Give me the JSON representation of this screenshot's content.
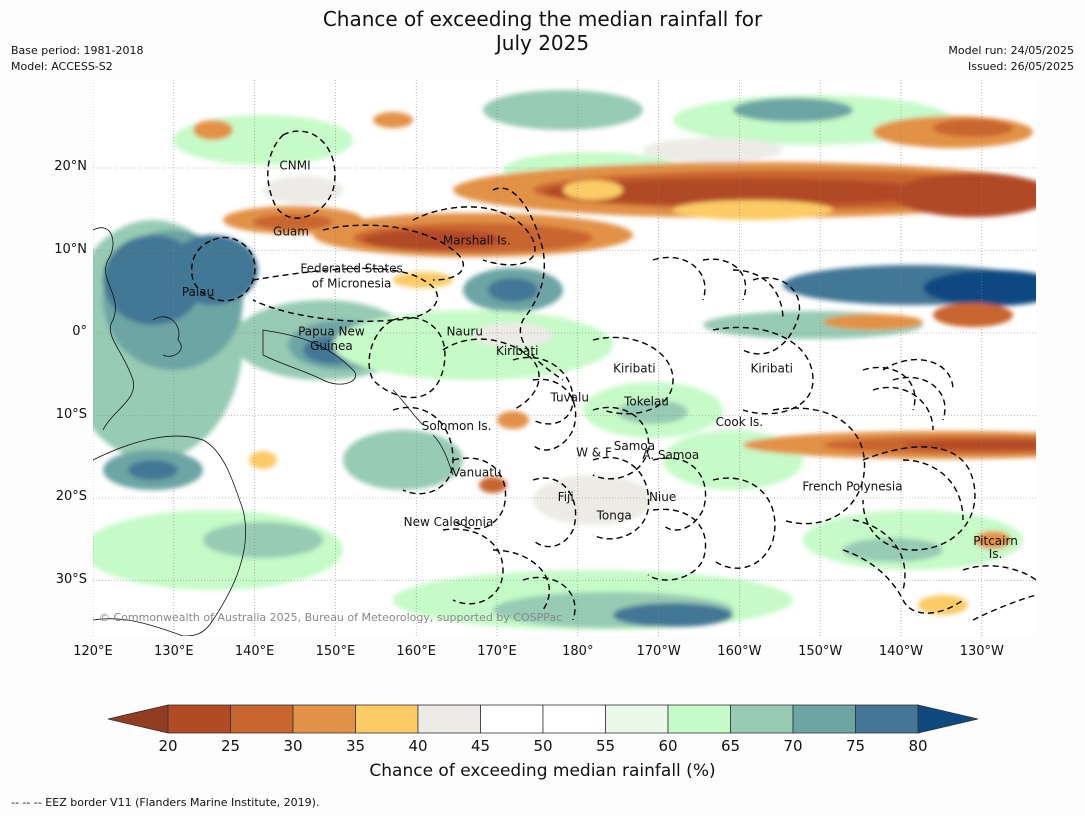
{
  "header": {
    "title_line1": "Chance of exceeding the median rainfall for",
    "title_line2": "July 2025",
    "base_period": "Base period: 1981-2018",
    "model": "Model: ACCESS-S2",
    "model_run": "Model run: 24/05/2025",
    "issued": "Issued: 26/05/2025"
  },
  "map": {
    "lat_ticks": [
      "20°N",
      "10°N",
      "0°",
      "10°S",
      "20°S",
      "30°S"
    ],
    "lon_ticks": [
      "120°E",
      "130°E",
      "140°E",
      "150°E",
      "160°E",
      "170°E",
      "180°",
      "170°W",
      "160°W",
      "150°W",
      "140°W",
      "130°W"
    ],
    "copyright": "© Commonwealth of Australia 2025, Bureau of Meteorology, supported by COSPPac",
    "region_labels": [
      {
        "name": "CNMI",
        "lon": 145,
        "lat": 20.3
      },
      {
        "name": "Guam",
        "lon": 144.5,
        "lat": 12.3
      },
      {
        "name": "Marshall Is.",
        "lon": 167.5,
        "lat": 11.2
      },
      {
        "name": "Federated States",
        "lon": 152,
        "lat": 7.8
      },
      {
        "name": "of Micronesia",
        "lon": 152,
        "lat": 6.0
      },
      {
        "name": "Palau",
        "lon": 133,
        "lat": 5.0
      },
      {
        "name": "Nauru",
        "lon": 166,
        "lat": 0.2
      },
      {
        "name": "Papua New",
        "lon": 149.5,
        "lat": 0.2
      },
      {
        "name": "Guinea",
        "lon": 149.5,
        "lat": -1.6
      },
      {
        "name": "Kiribati",
        "lon": 172.5,
        "lat": -2.2
      },
      {
        "name": "Kiribati",
        "lon": -173,
        "lat": -4.3
      },
      {
        "name": "Kiribati",
        "lon": -156,
        "lat": -4.3
      },
      {
        "name": "Tuvalu",
        "lon": 179,
        "lat": -7.8
      },
      {
        "name": "Tokelau",
        "lon": -171.5,
        "lat": -8.3
      },
      {
        "name": "Cook Is.",
        "lon": -160,
        "lat": -10.8
      },
      {
        "name": "Solomon Is.",
        "lon": 165,
        "lat": -11.3
      },
      {
        "name": "Samoa",
        "lon": -173,
        "lat": -13.7
      },
      {
        "name": "W & F",
        "lon": -178,
        "lat": -14.5
      },
      {
        "name": "A. Samoa",
        "lon": -168.5,
        "lat": -14.8
      },
      {
        "name": "Vanuatu",
        "lon": 167.5,
        "lat": -16.9
      },
      {
        "name": "French Polynesia",
        "lon": -146,
        "lat": -18.6
      },
      {
        "name": "Fiji",
        "lon": 178.5,
        "lat": -19.9
      },
      {
        "name": "Niue",
        "lon": -169.5,
        "lat": -19.9
      },
      {
        "name": "Tonga",
        "lon": -175.5,
        "lat": -22.1
      },
      {
        "name": "New Caledonia",
        "lon": 164,
        "lat": -22.9
      },
      {
        "name": "Pitcairn",
        "lon": -128.3,
        "lat": -25.2
      },
      {
        "name": "Is.",
        "lon": -128.3,
        "lat": -26.8
      }
    ]
  },
  "colorbar": {
    "ticks": [
      "20",
      "25",
      "30",
      "35",
      "40",
      "45",
      "50",
      "55",
      "60",
      "65",
      "70",
      "75",
      "80"
    ],
    "colors": [
      "#b24a26",
      "#c9652f",
      "#e29246",
      "#fccb66",
      "#edebe6",
      "#ffffff",
      "#ffffff",
      "#eaf8ea",
      "#c6fac8",
      "#97cbb4",
      "#6da4a4",
      "#437795"
    ],
    "below_color": "#923d22",
    "above_color": "#0e4a80",
    "label": "Chance of exceeding median rainfall (%)"
  },
  "footer": {
    "legend_line": "--  --  -- EEZ border V11 (Flanders Marine Institute, 2019)."
  }
}
